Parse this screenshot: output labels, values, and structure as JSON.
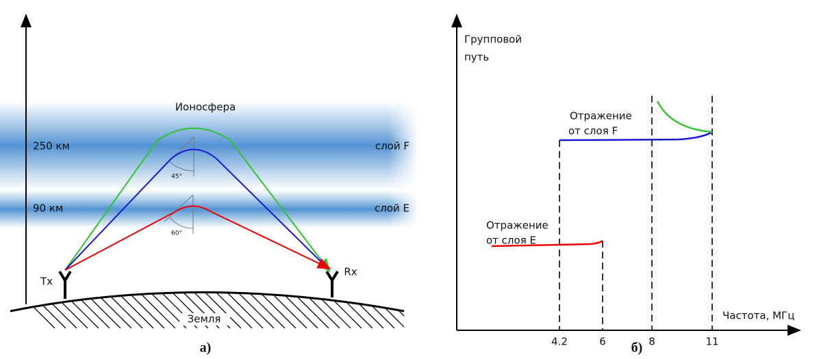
{
  "left": {
    "ionosphere": "Ионосфера",
    "layers": [
      {
        "height": "250 км",
        "name": "слой F"
      },
      {
        "height": "90 км",
        "name": "слой E"
      }
    ],
    "angles": [
      "45°",
      "60°"
    ],
    "tx": "Tx",
    "rx": "Rx",
    "earth": "Земля",
    "caption": "а)"
  },
  "right": {
    "y_label": [
      "Групповой",
      "путь"
    ],
    "x_label": "Частота, МГц",
    "x_ticks": [
      "4.2",
      "6",
      "8",
      "11"
    ],
    "reflections": [
      [
        "Отражение",
        "от слоя F"
      ],
      [
        "Отражение",
        "от слоя E"
      ]
    ],
    "caption": "б)"
  }
}
